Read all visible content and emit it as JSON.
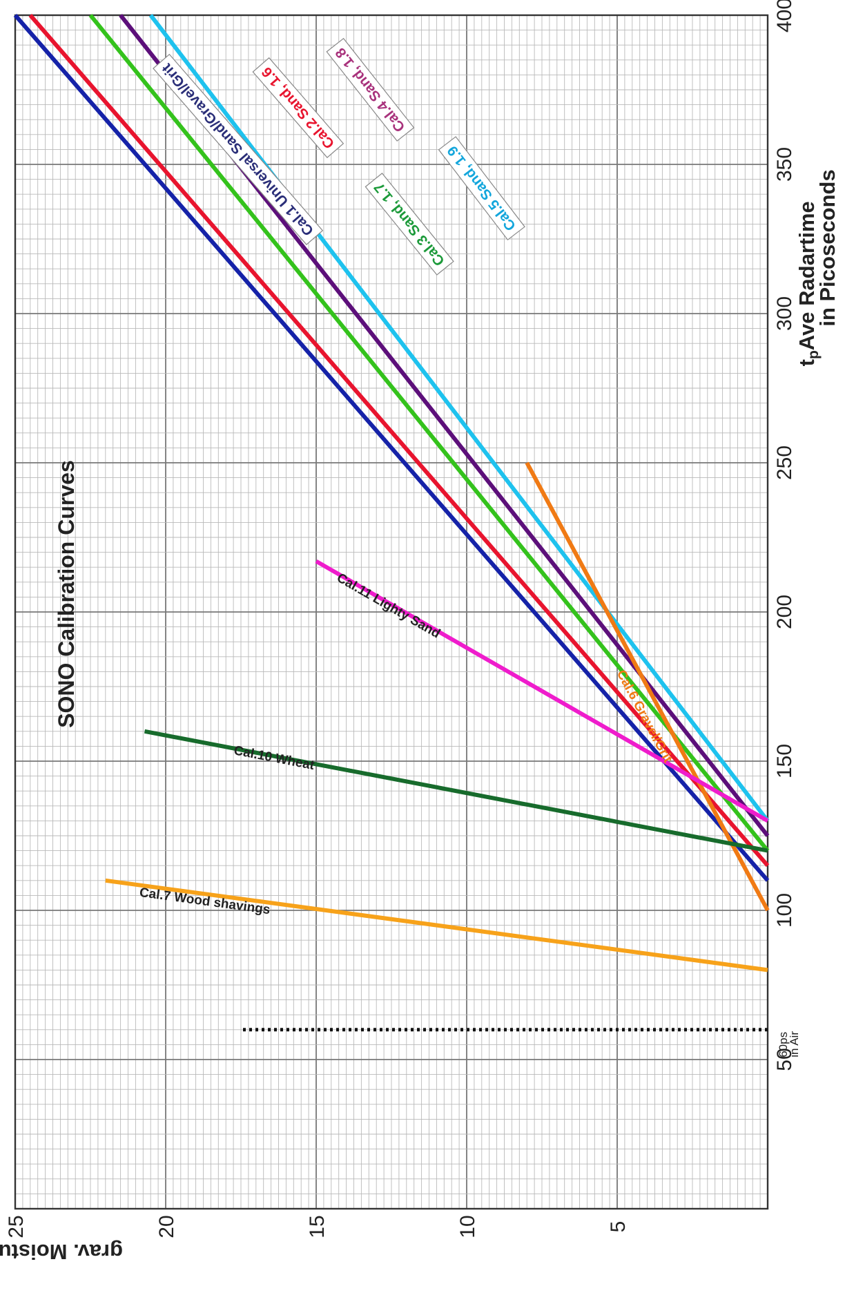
{
  "chart_data": {
    "type": "line",
    "title": "SONO  Calibration Curves",
    "xlabel_line1_main": "t",
    "xlabel_line1_sub": "p",
    "xlabel_line1_rest": "Ave  Radartime",
    "xlabel_line2": "in Picoseconds",
    "ylabel": "grav. Moisture in %",
    "xlim": [
      0,
      400
    ],
    "ylim": [
      0,
      25
    ],
    "x_ticks": [
      "50",
      "100",
      "150",
      "200",
      "250",
      "300",
      "350",
      "400"
    ],
    "y_ticks": [
      "5",
      "10",
      "15",
      "20",
      "25"
    ],
    "grid": true,
    "air_marker": {
      "x": 60,
      "y_top": 17.5,
      "label_top": "60ps",
      "label_bottom": "in Air"
    },
    "series": [
      {
        "name": "Cal.1  Universal Sand/Gravel/Grit",
        "color": "#1522a8",
        "x": [
          110,
          400
        ],
        "y": [
          0,
          25
        ],
        "label_style": "boxed",
        "label_color": "#2a2e78",
        "label_at": [
          355,
          17.6
        ]
      },
      {
        "name": "Cal.2  Sand, 1.6",
        "color": "#e8142e",
        "x": [
          115,
          400
        ],
        "y": [
          0,
          24.5
        ],
        "label_style": "boxed",
        "label_color": "#e8142e",
        "label_at": [
          369,
          15.6
        ]
      },
      {
        "name": "Cal.3  Sand, 1.7",
        "color": "#34c21c",
        "x": [
          120,
          400
        ],
        "y": [
          0,
          22.5
        ],
        "label_style": "boxed",
        "label_color": "#1c9a3a",
        "label_at": [
          330,
          11.9
        ]
      },
      {
        "name": "Cal.4  Sand, 1.8",
        "color": "#5c0f7a",
        "x": [
          125,
          400
        ],
        "y": [
          0,
          21.5
        ],
        "label_style": "boxed",
        "label_color": "#a8327c",
        "label_at": [
          375,
          13.2
        ]
      },
      {
        "name": "Cal.5  Sand, 1.9",
        "color": "#1ec2ee",
        "x": [
          130,
          400
        ],
        "y": [
          0,
          20.5
        ],
        "label_style": "boxed",
        "label_color": "#13a6dc",
        "label_at": [
          342,
          9.5
        ]
      },
      {
        "name": "Cal.6  Gravel/Grit",
        "color": "#f07a14",
        "x": [
          100,
          250
        ],
        "y": [
          0,
          8
        ],
        "label_style": "plain",
        "label_color": "#f07a14",
        "label_at": [
          165,
          4.1
        ]
      },
      {
        "name": "Cal.7  Wood shavings",
        "color": "#f7a21a",
        "x": [
          80,
          110
        ],
        "y": [
          0,
          22
        ],
        "label_style": "plain",
        "label_color": "#222222",
        "label_at": [
          103,
          18.7
        ]
      },
      {
        "name": "Cal.10  Wheat",
        "color": "#176b2c",
        "x": [
          120,
          160
        ],
        "y": [
          0,
          20.7
        ],
        "label_style": "plain",
        "label_color": "#222222",
        "label_at": [
          151,
          16.4
        ]
      },
      {
        "name": "Cal.11  Lighty Sand",
        "color": "#ef1ccc",
        "x": [
          130,
          217
        ],
        "y": [
          0,
          15
        ],
        "label_style": "plain",
        "label_color": "#222222",
        "label_at": [
          202,
          12.6
        ]
      }
    ]
  }
}
